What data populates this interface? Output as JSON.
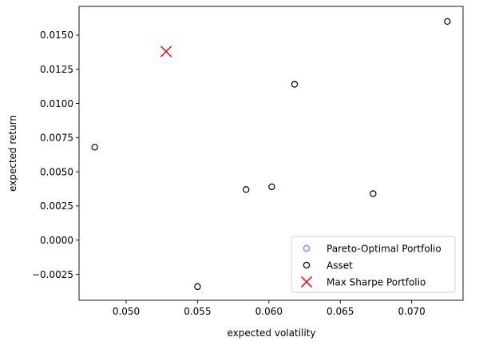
{
  "chart_data": {
    "type": "scatter",
    "title": "",
    "xlabel": "expected volatility",
    "ylabel": "expected return",
    "xlim": [
      0.0467,
      0.0736
    ],
    "ylim": [
      -0.0044,
      0.0171
    ],
    "x_ticks": [
      0.05,
      0.055,
      0.06,
      0.065,
      0.07
    ],
    "x_tick_labels": [
      "0.050",
      "0.055",
      "0.060",
      "0.065",
      "0.070"
    ],
    "y_ticks": [
      -0.0025,
      0.0,
      0.0025,
      0.005,
      0.0075,
      0.01,
      0.0125,
      0.015
    ],
    "y_tick_labels": [
      "−0.0025",
      "0.0000",
      "0.0025",
      "0.0050",
      "0.0075",
      "0.0100",
      "0.0125",
      "0.0150"
    ],
    "grid": false,
    "legend_position": "bottom-right",
    "series": [
      {
        "name": "Pareto-Optimal Portfolio",
        "marker": "circle-open",
        "color": "#7b7bf0",
        "points": []
      },
      {
        "name": "Asset",
        "marker": "circle-open",
        "color": "#000000",
        "points": [
          {
            "x": 0.0478,
            "y": 0.0068
          },
          {
            "x": 0.055,
            "y": -0.0034
          },
          {
            "x": 0.0584,
            "y": 0.0037
          },
          {
            "x": 0.0602,
            "y": 0.0039
          },
          {
            "x": 0.0618,
            "y": 0.0114
          },
          {
            "x": 0.0673,
            "y": 0.0034
          },
          {
            "x": 0.0725,
            "y": 0.016
          }
        ]
      },
      {
        "name": "Max Sharpe Portfolio",
        "marker": "x",
        "color": "#e8121f",
        "points": [
          {
            "x": 0.0528,
            "y": 0.0138
          }
        ]
      }
    ]
  }
}
